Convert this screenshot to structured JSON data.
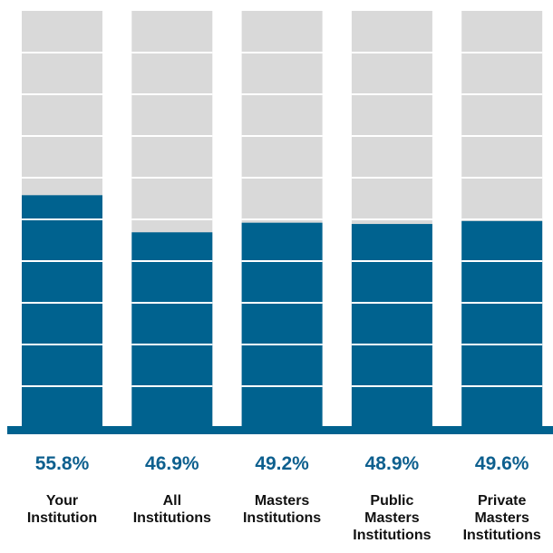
{
  "chart_data": {
    "type": "bar",
    "orientation": "vertical",
    "stacked_background": true,
    "ylim": [
      0,
      100
    ],
    "gridlines": 10,
    "grid": true,
    "legend": "none",
    "title": "",
    "xlabel": "",
    "ylabel": "",
    "categories": [
      [
        "Your",
        "Institution"
      ],
      [
        "All",
        "Institutions"
      ],
      [
        "Masters",
        "Institutions"
      ],
      [
        "Public",
        "Masters",
        "Institutions"
      ],
      [
        "Private",
        "Masters",
        "Institutions"
      ]
    ],
    "values": [
      55.8,
      46.9,
      49.2,
      48.9,
      49.6
    ],
    "value_labels": [
      "55.8%",
      "46.9%",
      "49.2%",
      "48.9%",
      "49.6%"
    ],
    "colors": {
      "bar": "#00628f",
      "background_bar": "#d9d9d9",
      "baseline": "#00628f",
      "value_text": "#0d5f8e",
      "category_text": "#111111",
      "gridline": "#ffffff"
    }
  }
}
